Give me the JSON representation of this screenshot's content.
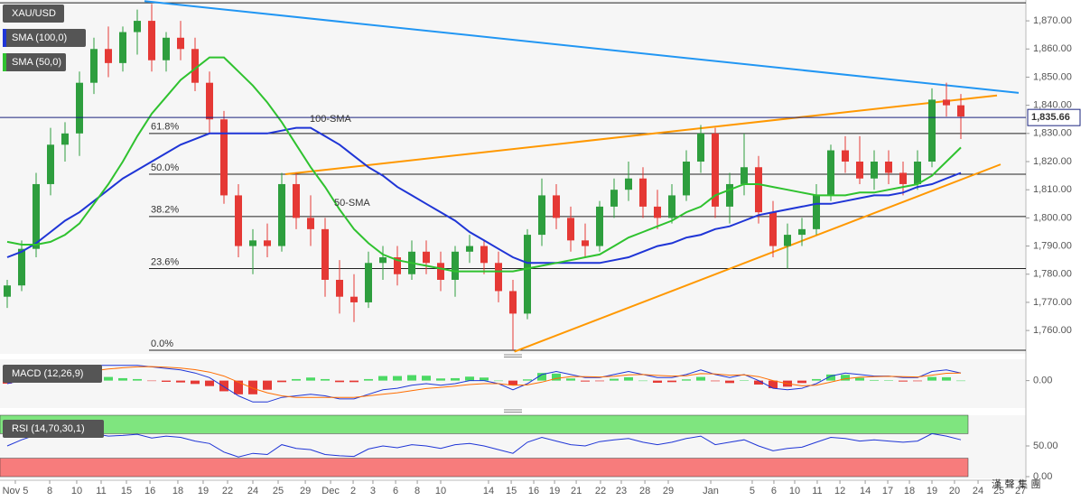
{
  "chart_data": {
    "type": "candlestick",
    "title": "XAU/USD",
    "up_color": "#2e9e3e",
    "down_color": "#e53935",
    "xlim": [
      -0.5,
      70.5
    ],
    "ylim": [
      1751.7,
      1877.4
    ],
    "yticks": [
      {
        "value": 1760,
        "label": "1,760.00"
      },
      {
        "value": 1770,
        "label": "1,770.00"
      },
      {
        "value": 1780,
        "label": "1,780.00"
      },
      {
        "value": 1790,
        "label": "1,790.00"
      },
      {
        "value": 1800,
        "label": "1,800.00"
      },
      {
        "value": 1810,
        "label": "1,810.00"
      },
      {
        "value": 1820,
        "label": "1,820.00"
      },
      {
        "value": 1830,
        "label": "1,830.00"
      },
      {
        "value": 1840,
        "label": "1,840.00"
      },
      {
        "value": 1850,
        "label": "1,850.00"
      },
      {
        "value": 1860,
        "label": "1,860.00"
      },
      {
        "value": 1870,
        "label": "1,870.00"
      }
    ],
    "xticks": [
      {
        "value": 0.56,
        "label": "Nov 5"
      },
      {
        "value": 2.94,
        "label": "8"
      },
      {
        "value": 4.81,
        "label": "10"
      },
      {
        "value": 6.5,
        "label": "11"
      },
      {
        "value": 8.25,
        "label": "15"
      },
      {
        "value": 9.88,
        "label": "16"
      },
      {
        "value": 11.81,
        "label": "18"
      },
      {
        "value": 13.56,
        "label": "19"
      },
      {
        "value": 15.25,
        "label": "22"
      },
      {
        "value": 17,
        "label": "24"
      },
      {
        "value": 18.75,
        "label": "25"
      },
      {
        "value": 20.63,
        "label": "29"
      },
      {
        "value": 22.38,
        "label": "Dec"
      },
      {
        "value": 23.94,
        "label": "2"
      },
      {
        "value": 25.31,
        "label": "3"
      },
      {
        "value": 26.88,
        "label": "6"
      },
      {
        "value": 28.38,
        "label": "8"
      },
      {
        "value": 30,
        "label": "10"
      },
      {
        "value": 33.31,
        "label": "14"
      },
      {
        "value": 34.88,
        "label": "15"
      },
      {
        "value": 36.44,
        "label": "16"
      },
      {
        "value": 37.88,
        "label": "19"
      },
      {
        "value": 39.38,
        "label": "21"
      },
      {
        "value": 41.06,
        "label": "22"
      },
      {
        "value": 42.5,
        "label": "23"
      },
      {
        "value": 44.13,
        "label": "28"
      },
      {
        "value": 45.75,
        "label": "29"
      },
      {
        "value": 48.69,
        "label": "Jan"
      },
      {
        "value": 51.56,
        "label": "5"
      },
      {
        "value": 53.06,
        "label": "6"
      },
      {
        "value": 54.5,
        "label": "10"
      },
      {
        "value": 56.06,
        "label": "11"
      },
      {
        "value": 57.63,
        "label": "12"
      },
      {
        "value": 59.38,
        "label": "14"
      },
      {
        "value": 60.94,
        "label": "17"
      },
      {
        "value": 62.44,
        "label": "18"
      },
      {
        "value": 64,
        "label": "19"
      },
      {
        "value": 65.56,
        "label": "20"
      },
      {
        "value": 67.19,
        "label": "24"
      },
      {
        "value": 68.63,
        "label": "25"
      },
      {
        "value": 70.13,
        "label": "27"
      }
    ],
    "open": [
      1772,
      1776,
      1789,
      1812,
      1826,
      1830,
      1848,
      1860,
      1855,
      1866,
      1870,
      1856,
      1864,
      1860,
      1848,
      1835,
      1808,
      1790,
      1792,
      1790,
      1812,
      1800,
      1796,
      1778,
      1772,
      1770,
      1784,
      1786,
      1780,
      1788,
      1784,
      1778,
      1788,
      1790,
      1784,
      1774,
      1766,
      1794,
      1808,
      1800,
      1792,
      1790,
      1804,
      1810,
      1814,
      1804,
      1800,
      1808,
      1820,
      1830,
      1804,
      1812,
      1818,
      1802,
      1790,
      1794,
      1796,
      1808,
      1824,
      1820,
      1814,
      1820,
      1816,
      1812,
      1820,
      1842,
      1840
    ],
    "high": [
      1778,
      1792,
      1816,
      1832,
      1834,
      1852,
      1864,
      1868,
      1868,
      1874,
      1876,
      1866,
      1870,
      1864,
      1852,
      1838,
      1812,
      1796,
      1798,
      1816,
      1816,
      1808,
      1800,
      1785,
      1780,
      1788,
      1790,
      1790,
      1792,
      1792,
      1788,
      1790,
      1794,
      1792,
      1788,
      1778,
      1796,
      1814,
      1812,
      1804,
      1798,
      1806,
      1814,
      1820,
      1818,
      1810,
      1812,
      1824,
      1833,
      1832,
      1816,
      1830,
      1822,
      1806,
      1798,
      1800,
      1812,
      1826,
      1829,
      1829,
      1824,
      1824,
      1820,
      1824,
      1846,
      1848,
      1844
    ],
    "low": [
      1768,
      1774,
      1786,
      1808,
      1820,
      1822,
      1844,
      1850,
      1852,
      1858,
      1852,
      1852,
      1856,
      1845,
      1830,
      1805,
      1786,
      1780,
      1786,
      1788,
      1796,
      1790,
      1772,
      1766,
      1763,
      1768,
      1778,
      1776,
      1778,
      1780,
      1774,
      1772,
      1784,
      1780,
      1770,
      1753,
      1764,
      1790,
      1796,
      1788,
      1786,
      1788,
      1800,
      1806,
      1800,
      1796,
      1798,
      1806,
      1816,
      1800,
      1798,
      1808,
      1798,
      1786,
      1782,
      1790,
      1794,
      1806,
      1816,
      1812,
      1810,
      1812,
      1808,
      1810,
      1818,
      1836,
      1828
    ],
    "close": [
      1776,
      1789,
      1812,
      1826,
      1830,
      1848,
      1860,
      1855,
      1866,
      1870,
      1856,
      1864,
      1860,
      1848,
      1835,
      1808,
      1790,
      1792,
      1790,
      1812,
      1800,
      1796,
      1778,
      1772,
      1770,
      1784,
      1786,
      1780,
      1788,
      1784,
      1778,
      1788,
      1790,
      1784,
      1774,
      1766,
      1794,
      1808,
      1800,
      1792,
      1790,
      1804,
      1810,
      1814,
      1804,
      1800,
      1808,
      1820,
      1830,
      1804,
      1812,
      1818,
      1802,
      1790,
      1794,
      1796,
      1808,
      1824,
      1820,
      1814,
      1820,
      1816,
      1812,
      1820,
      1842,
      1840,
      1836
    ],
    "series": [
      {
        "name": "SMA (100,0)",
        "color": "#1f35d6",
        "values": [
          1786,
          1788,
          1791,
          1795,
          1799,
          1802,
          1806,
          1810,
          1814,
          1817,
          1820,
          1823,
          1826,
          1828,
          1830,
          1830,
          1830,
          1830,
          1830,
          1831,
          1832,
          1832,
          1829,
          1826,
          1822,
          1818,
          1815,
          1811,
          1808,
          1805,
          1802,
          1799,
          1795,
          1792,
          1789,
          1786,
          1784,
          1784,
          1784,
          1784,
          1784,
          1784,
          1785,
          1786,
          1788,
          1790,
          1791,
          1793,
          1794,
          1796,
          1797,
          1799,
          1801,
          1802,
          1803,
          1804,
          1805,
          1805,
          1806,
          1807,
          1808,
          1808,
          1809,
          1811,
          1812,
          1814,
          1816
        ]
      },
      {
        "name": "SMA (50,0)",
        "color": "#2fc22f",
        "values": [
          1791.5,
          1790.5,
          1790.5,
          1791.5,
          1794,
          1798,
          1805,
          1812,
          1820,
          1829,
          1837,
          1843,
          1849,
          1853,
          1857,
          1857,
          1852,
          1847,
          1841,
          1834,
          1826,
          1818,
          1811,
          1803,
          1796,
          1791,
          1787,
          1785,
          1784,
          1783,
          1782,
          1781,
          1781,
          1781,
          1781,
          1781,
          1782,
          1783,
          1784,
          1785,
          1786,
          1787,
          1790,
          1793,
          1795,
          1797,
          1799,
          1802,
          1804,
          1808,
          1810,
          1812,
          1812,
          1811,
          1810,
          1809,
          1808,
          1808,
          1808,
          1809,
          1809,
          1810,
          1811,
          1812,
          1815,
          1820,
          1825
        ]
      }
    ],
    "last_price": {
      "value": 1835.66,
      "label": "1,835.66"
    },
    "fib_high": 1876.4,
    "fib_levels": [
      {
        "value": 1830,
        "label": "61.8%"
      },
      {
        "value": 1815.5,
        "label": "50.0%"
      },
      {
        "value": 1800.5,
        "label": "38.2%"
      },
      {
        "value": 1782,
        "label": "23.6%"
      },
      {
        "value": 1753,
        "label": "0.0%"
      }
    ],
    "trendlines": [
      {
        "color": "#2196f3",
        "x": [
          9.5,
          70
        ],
        "y": [
          1877,
          1844.4
        ]
      },
      {
        "color": "#ff9800",
        "x": [
          19.25,
          68.5
        ],
        "y": [
          1815.5,
          1843.5
        ]
      },
      {
        "color": "#ff9800",
        "x": [
          35.1,
          68.75
        ],
        "y": [
          1752.5,
          1819
        ]
      }
    ],
    "annotations": [
      {
        "text": "100-SMA",
        "color": "#6a6ad8"
      },
      {
        "text": "50-SMA",
        "color": "#22aa22"
      }
    ],
    "macd": {
      "name": "MACD (12,26,9)",
      "ylim": [
        -9,
        7
      ],
      "yticks": [
        {
          "value": 0,
          "label": "0.00"
        }
      ],
      "macd": {
        "color": "#1f35d6",
        "values": [
          -1,
          0,
          2,
          3,
          3.5,
          4,
          5,
          5,
          5,
          5,
          4.5,
          4,
          3.5,
          2.5,
          1,
          -2,
          -5,
          -7,
          -7,
          -5.5,
          -5,
          -4.5,
          -5,
          -6,
          -6,
          -4.5,
          -3,
          -2.5,
          -1.5,
          -1,
          -1.5,
          -1,
          0,
          0,
          -1,
          -3,
          -1,
          2,
          3,
          2,
          1,
          1,
          2,
          3,
          2,
          1,
          1,
          2,
          3.5,
          2,
          1,
          2,
          0,
          -2.5,
          -3,
          -2.5,
          -1,
          1.5,
          2.5,
          2,
          1.5,
          1.5,
          1,
          1,
          3,
          3.5,
          2.5
        ]
      },
      "signal": {
        "color": "#ff6d00",
        "values": [
          0,
          0,
          0.5,
          1.2,
          2,
          2.6,
          3.2,
          3.8,
          4.2,
          4.5,
          4.6,
          4.4,
          4.1,
          3.6,
          2.8,
          1.5,
          -0.5,
          -2.5,
          -4,
          -5,
          -5.5,
          -5.5,
          -5.5,
          -5.5,
          -5.5,
          -5,
          -4.5,
          -4,
          -3.3,
          -2.6,
          -2.2,
          -1.8,
          -1.3,
          -1,
          -1,
          -1.5,
          -1.4,
          -0.5,
          0.7,
          1.3,
          1.3,
          1.2,
          1.4,
          1.9,
          2,
          1.7,
          1.5,
          1.6,
          2.3,
          2.2,
          1.8,
          1.9,
          1.3,
          0,
          -1,
          -1.7,
          -1.5,
          -0.5,
          0.6,
          1.1,
          1.3,
          1.4,
          1.3,
          1.2,
          1.8,
          2.4,
          2.5
        ]
      },
      "histogram": {
        "up_color": "#4cd964",
        "down_color": "#e53935",
        "values": [
          -1,
          0,
          1.5,
          1.8,
          1.5,
          1.4,
          1.8,
          1.2,
          0.8,
          0.5,
          -0.1,
          -0.4,
          -0.6,
          -1.1,
          -1.8,
          -3.5,
          -4.5,
          -4.5,
          -3,
          -0.5,
          0.5,
          1,
          0.5,
          -0.5,
          -0.5,
          0.5,
          1.5,
          1.5,
          1.8,
          1.6,
          0.7,
          0.8,
          1.3,
          1,
          0,
          -1.5,
          0.4,
          2.5,
          2.3,
          0.7,
          -0.3,
          -0.2,
          0.6,
          1.1,
          0,
          -0.7,
          -0.5,
          0.4,
          1.2,
          -0.2,
          -0.8,
          0.1,
          -1.3,
          -2.5,
          -2,
          -0.8,
          0.5,
          2,
          1.9,
          0.9,
          0.2,
          0.1,
          -0.3,
          -0.2,
          1.2,
          1.1,
          0
        ]
      }
    },
    "rsi": {
      "name": "RSI (14,70,30,1)",
      "ylim": [
        0,
        100
      ],
      "yticks": [
        {
          "value": 50,
          "label": "50.00"
        },
        {
          "value": 0,
          "label": "0.00"
        }
      ],
      "overbought": 70,
      "oversold": 30,
      "overbought_color": "#7fe57f",
      "oversold_color": "#f77c7c",
      "color": "#1f35d6",
      "values": [
        50,
        60,
        68,
        70,
        66,
        68,
        70,
        66,
        67,
        69,
        63,
        66,
        64,
        58,
        54,
        40,
        32,
        38,
        36,
        52,
        46,
        44,
        36,
        34,
        33,
        45,
        50,
        47,
        52,
        50,
        46,
        52,
        54,
        50,
        44,
        38,
        56,
        64,
        58,
        52,
        50,
        57,
        60,
        62,
        56,
        52,
        56,
        62,
        66,
        52,
        56,
        60,
        50,
        42,
        46,
        48,
        56,
        64,
        62,
        58,
        60,
        58,
        56,
        58,
        70,
        66,
        60
      ]
    },
    "watermark": "漢 聲 集 團"
  }
}
